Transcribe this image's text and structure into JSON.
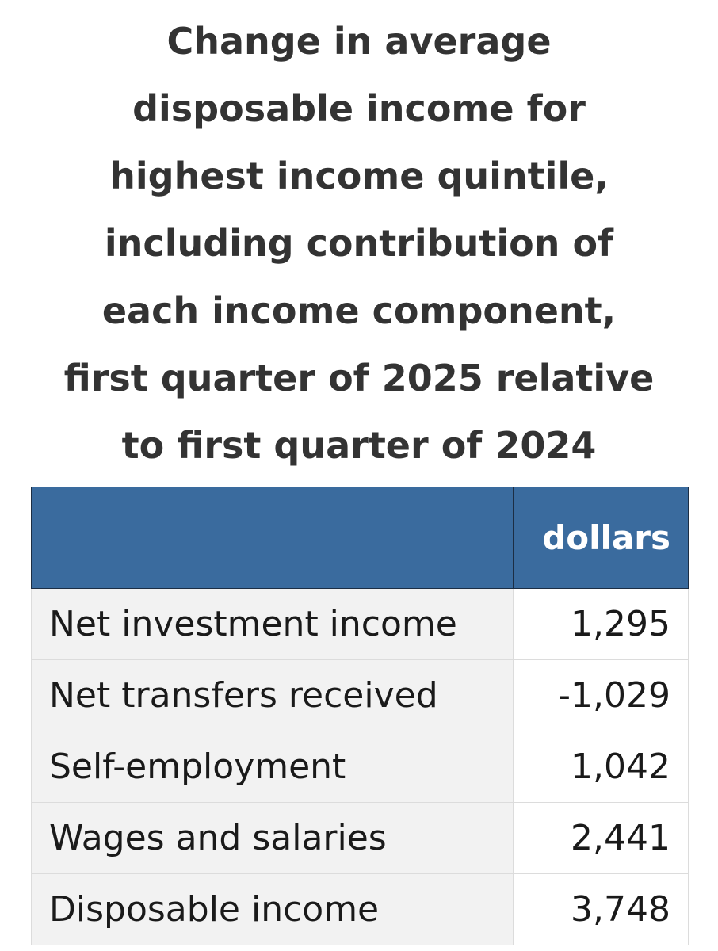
{
  "title_lines": [
    "Change in average",
    "disposable income for",
    "highest income quintile,",
    "including contribution of",
    "each income component,",
    "first quarter of 2025 relative",
    "to first quarter of 2024"
  ],
  "table": {
    "header": {
      "label": "",
      "unit": "dollars"
    },
    "rows": [
      {
        "label": "Net investment income",
        "value": "1,295"
      },
      {
        "label": "Net transfers received",
        "value": "-1,029"
      },
      {
        "label": "Self-employment",
        "value": "1,042"
      },
      {
        "label": "Wages and salaries",
        "value": "2,441"
      },
      {
        "label": "Disposable income",
        "value": "3,748"
      }
    ]
  },
  "colors": {
    "header_background": "#3a6b9e",
    "header_text": "#ffffff",
    "label_cell_background": "#f2f2f2",
    "title_text": "#333333"
  }
}
